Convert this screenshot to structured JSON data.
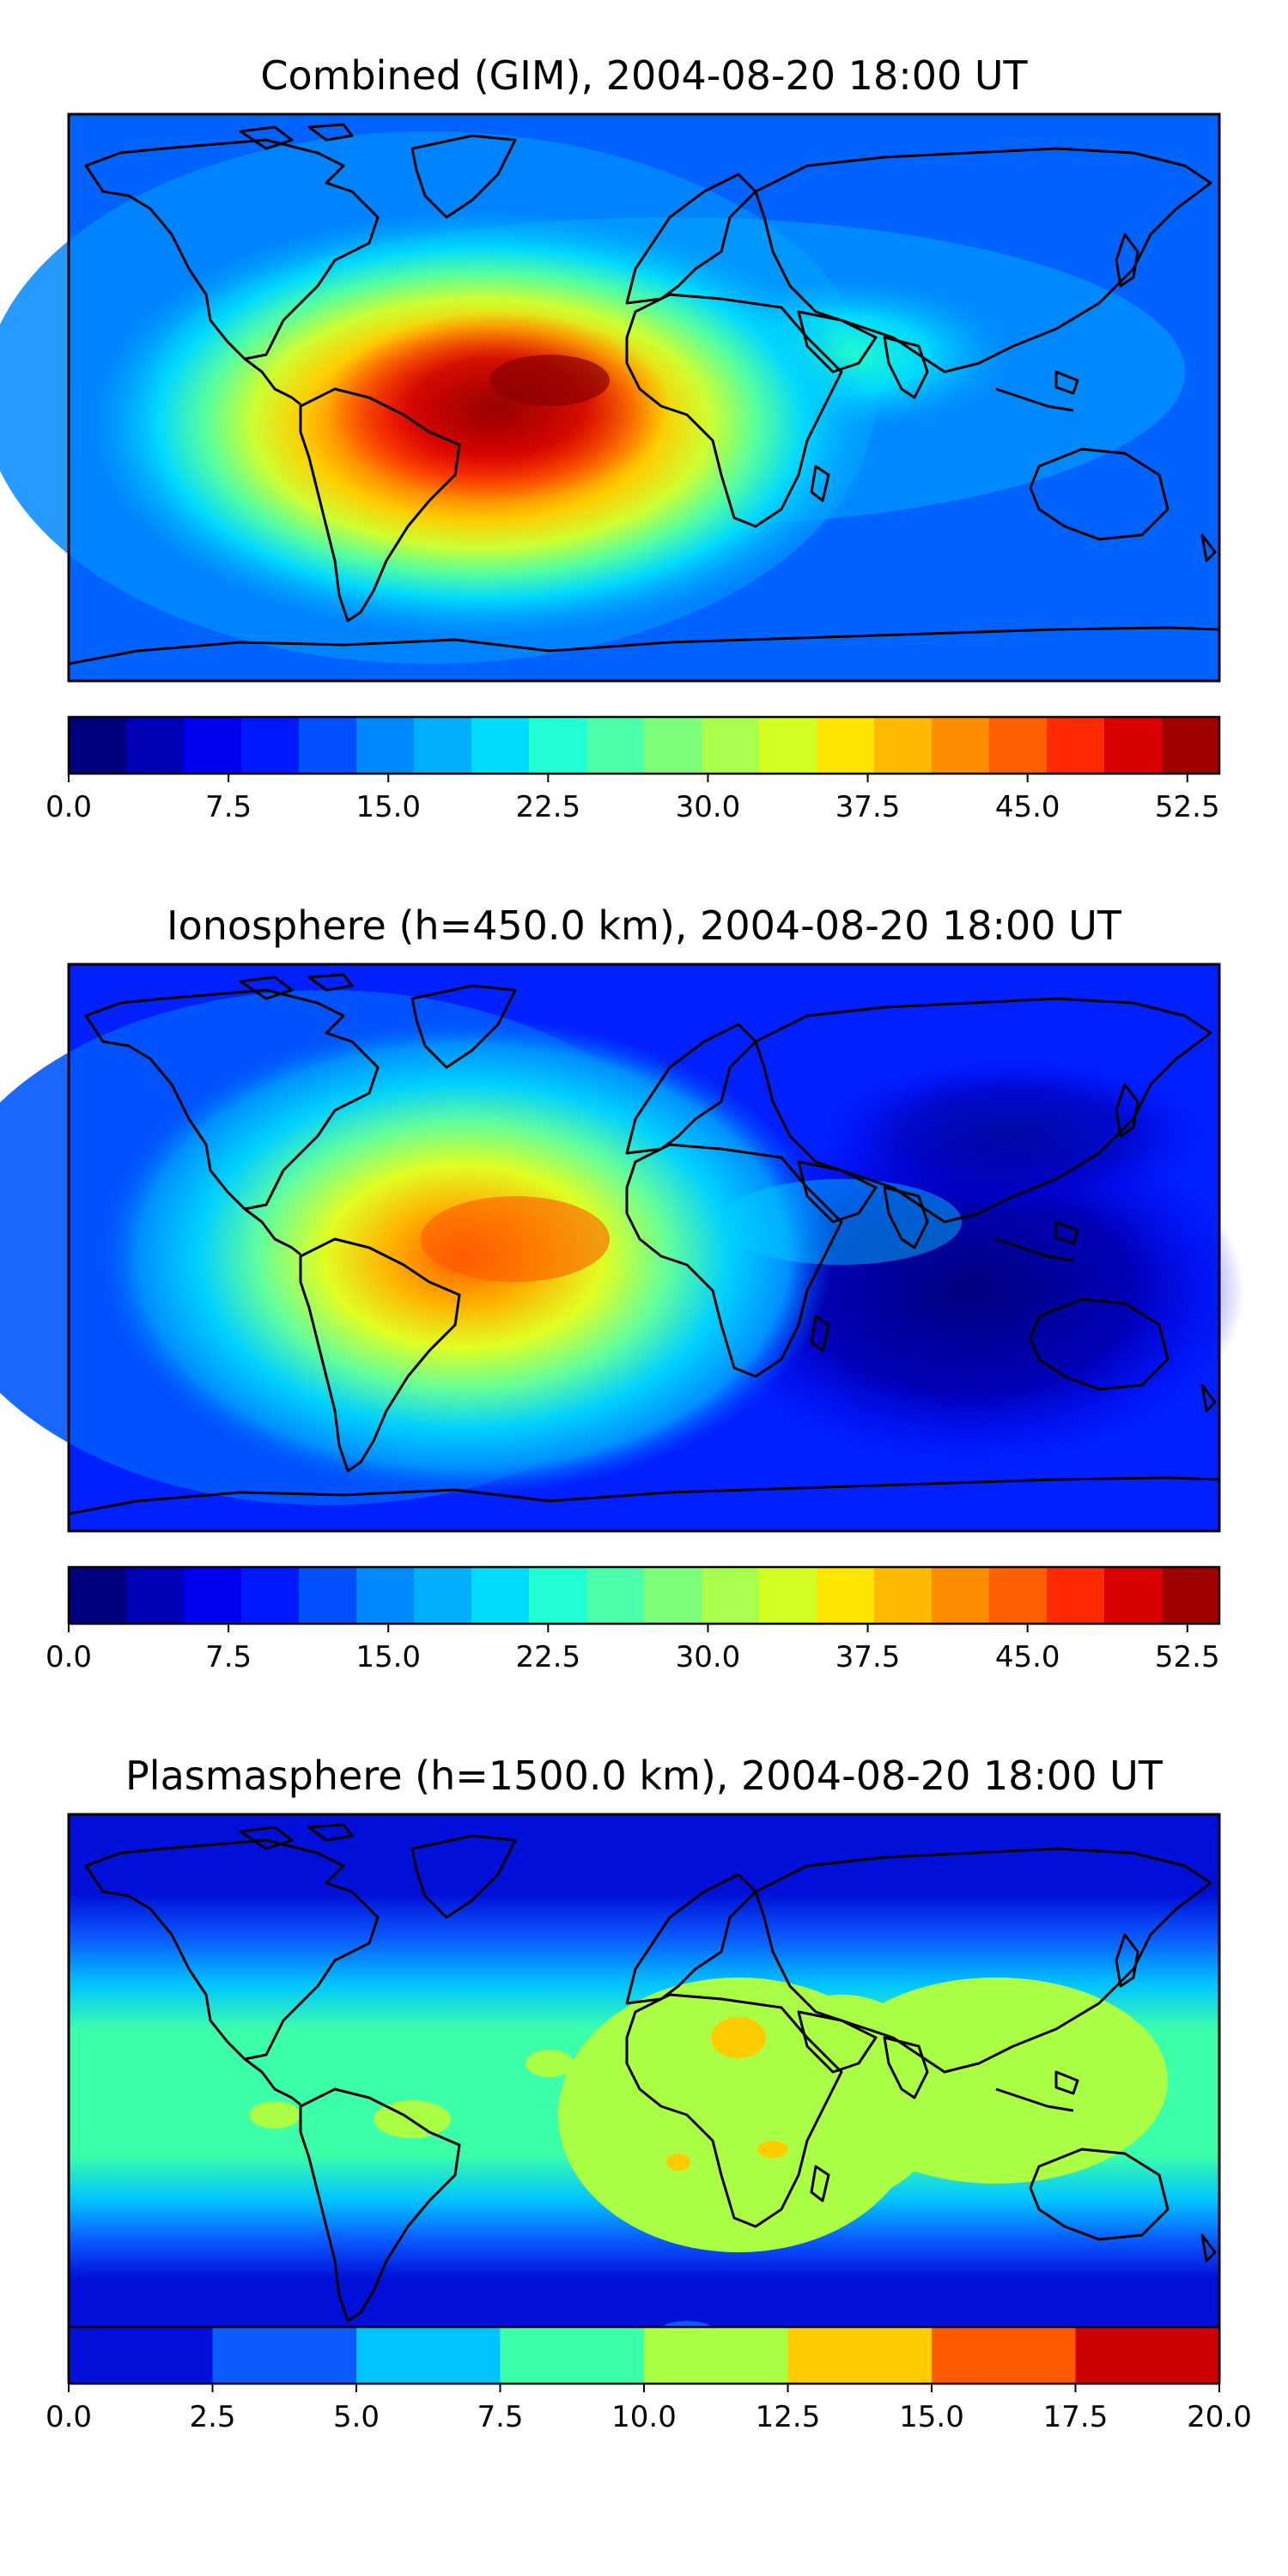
{
  "panels": [
    {
      "title": "Combined (GIM), 2004-08-20 18:00 UT",
      "colorbar": {
        "colors": [
          "#00007f",
          "#0000b8",
          "#0000f1",
          "#0018ff",
          "#0050ff",
          "#0088ff",
          "#00b0ff",
          "#00dcfe",
          "#22ffd4",
          "#4cffaa",
          "#7cff7a",
          "#aaff4c",
          "#d4ff22",
          "#ffe600",
          "#ffb900",
          "#ff8c00",
          "#ff5f00",
          "#ff2a00",
          "#d80000",
          "#9f0000"
        ],
        "ticks": [
          "0.0",
          "7.5",
          "15.0",
          "22.5",
          "30.0",
          "37.5",
          "45.0",
          "52.5"
        ]
      }
    },
    {
      "title": "Ionosphere  (h=450.0 km), 2004-08-20 18:00 UT",
      "colorbar": {
        "colors": [
          "#00007f",
          "#0000b8",
          "#0000f1",
          "#0018ff",
          "#0050ff",
          "#0088ff",
          "#00b0ff",
          "#00dcfe",
          "#22ffd4",
          "#4cffaa",
          "#7cff7a",
          "#aaff4c",
          "#d4ff22",
          "#ffe600",
          "#ffb900",
          "#ff8c00",
          "#ff5f00",
          "#ff2a00",
          "#d80000",
          "#9f0000"
        ],
        "ticks": [
          "0.0",
          "7.5",
          "15.0",
          "22.5",
          "30.0",
          "37.5",
          "45.0",
          "52.5"
        ]
      }
    },
    {
      "title": "Plasmasphere (h=1500.0 km), 2004-08-20 18:00 UT",
      "colorbar": {
        "colors": [
          "#0010d8",
          "#0a5cff",
          "#00c4ff",
          "#3cffaa",
          "#aaff44",
          "#ffcc00",
          "#ff5a00",
          "#cc0000"
        ],
        "ticks": [
          "0.0",
          "2.5",
          "5.0",
          "7.5",
          "10.0",
          "12.5",
          "15.0",
          "17.5",
          "20.0"
        ]
      }
    }
  ]
}
